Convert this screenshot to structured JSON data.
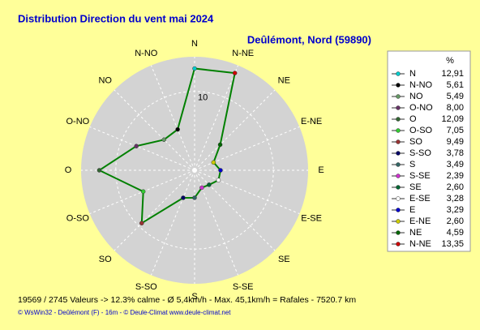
{
  "chart_data": {
    "type": "radar",
    "title": "Distribution Direction du vent   mai 2024",
    "subtitle": "Deûlémont, Nord (59890)",
    "unit": "%",
    "categories": [
      "N",
      "N-NO",
      "NO",
      "O-NO",
      "O",
      "O-SO",
      "SO",
      "S-SO",
      "S",
      "S-SE",
      "SE",
      "E-SE",
      "E",
      "E-NE",
      "NE",
      "N-NE"
    ],
    "values": [
      12.91,
      5.61,
      5.49,
      8.0,
      12.09,
      7.05,
      9.49,
      3.78,
      3.49,
      2.39,
      2.6,
      3.28,
      3.29,
      2.6,
      4.59,
      13.35
    ],
    "value_labels": [
      "12,91",
      "5,61",
      "5,49",
      "8,00",
      "12,09",
      "7,05",
      "9,49",
      "3,78",
      "3,49",
      "2,39",
      "2,60",
      "3,28",
      "3,29",
      "2,60",
      "4,59",
      "13,35"
    ],
    "colors": [
      "#00cccc",
      "#000000",
      "#669966",
      "#663366",
      "#336633",
      "#33cc33",
      "#993333",
      "#000066",
      "#336666",
      "#cc33cc",
      "#006633",
      "#ffffff",
      "#0000cc",
      "#cccc00",
      "#006600",
      "#cc0000"
    ],
    "line_color": "#008000",
    "rlim": [
      0,
      14.4
    ],
    "rticks": [
      10
    ],
    "notes": [
      "19569 / 2745 Valeurs  -> 12.3% calme   -   Ø 5,4km/h   -   Max. 45,1km/h = Rafales   -   7520.7 km",
      "© WsWin32  -  Deûlémont (F) - 16m  -  © Deule-Climat www.deule-climat.net"
    ]
  }
}
